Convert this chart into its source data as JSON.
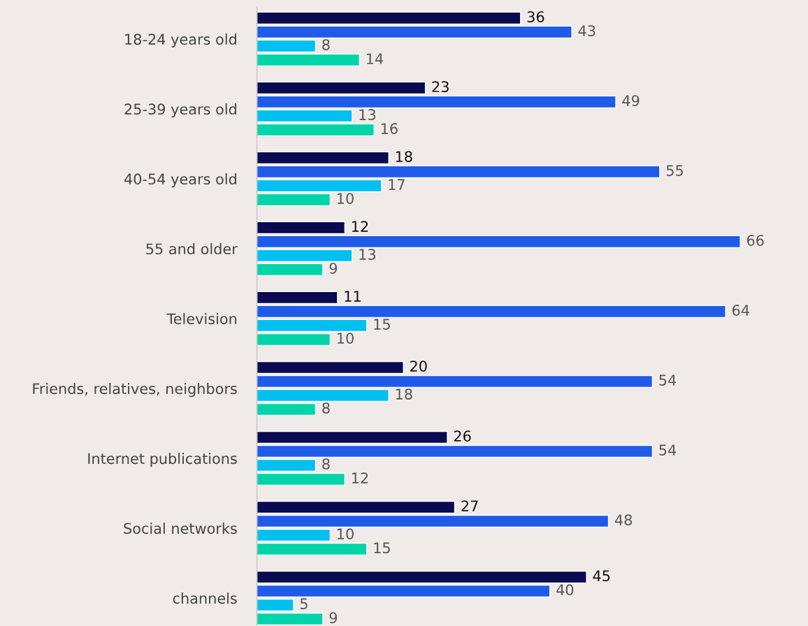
{
  "chart_data": {
    "type": "bar",
    "orientation": "horizontal",
    "data_labels": true,
    "grid": false,
    "legend": false,
    "categories": [
      "18-24 years old",
      "25-39 years old",
      "40-54 years old",
      "55 and older",
      "Television",
      "Friends, relatives, neighbors",
      "Internet publications",
      "Social networks",
      "channels"
    ],
    "series": [
      {
        "color": "#0a0a50",
        "values": [
          36,
          23,
          18,
          12,
          11,
          20,
          26,
          27,
          45
        ]
      },
      {
        "color": "#1f5be8",
        "values": [
          43,
          49,
          55,
          66,
          64,
          54,
          54,
          48,
          40
        ]
      },
      {
        "color": "#00c0f0",
        "values": [
          8,
          13,
          17,
          13,
          15,
          18,
          8,
          10,
          5
        ]
      },
      {
        "color": "#00d4a8",
        "values": [
          14,
          16,
          10,
          9,
          10,
          8,
          12,
          15,
          9
        ]
      }
    ]
  }
}
